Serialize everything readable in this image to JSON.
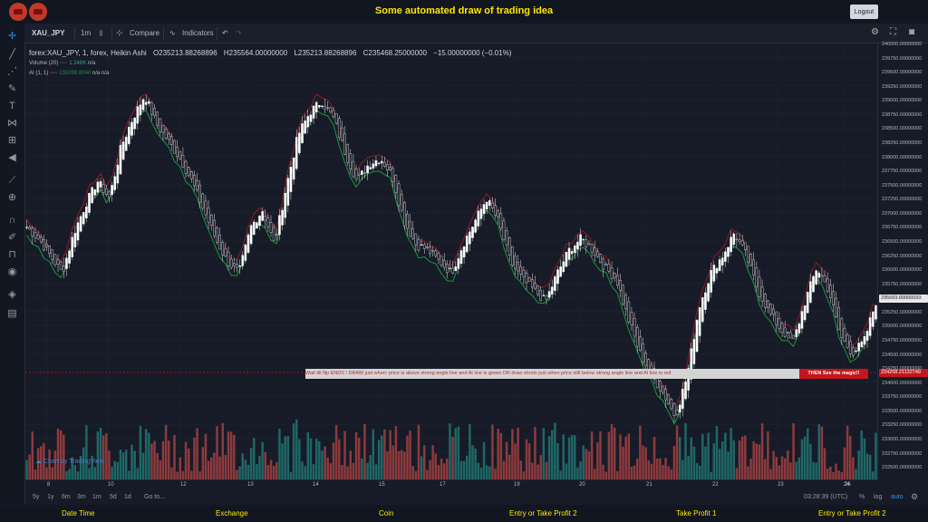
{
  "app": {
    "title": "Some automated draw of trading idea",
    "logout_label": "Logout",
    "logo_color": "#c0392b",
    "title_color": "#ffe600"
  },
  "toolbar": {
    "symbol": "XAU_JPY",
    "interval": "1m",
    "compare_label": "Compare",
    "indicators_label": "Indicators"
  },
  "legend": {
    "symbol_line": "forex:XAU_JPY, 1, forex, Heikin Ashi",
    "open": "O235213.88268896",
    "high": "H235564.00000000",
    "low": "L235213.88268896",
    "close": "C235468.25000000",
    "change": "−15.00000000 (−0.01%)",
    "volume_label": "Volume (20)",
    "volume_value": "1.248K",
    "volume_na": "n/a",
    "ai_label": "AI (1, 1)",
    "ai_value": "235098.8040",
    "ai_na1": "n/a",
    "ai_na2": "n/a"
  },
  "y_axis": {
    "labels": [
      "240000.00000000",
      "239750.00000000",
      "239500.00000000",
      "239250.00000000",
      "239000.00000000",
      "238750.00000000",
      "238500.00000000",
      "238250.00000000",
      "238000.00000000",
      "237750.00000000",
      "237500.00000000",
      "237250.00000000",
      "237000.00000000",
      "236750.00000000",
      "236500.00000000",
      "236250.00000000",
      "236000.00000000",
      "235750.00000000",
      "235500.00000000",
      "235250.00000000",
      "235000.00000000",
      "234750.00000000",
      "234500.00000000",
      "234250.00000000",
      "234000.00000000",
      "233750.00000000",
      "233500.00000000",
      "233250.00000000",
      "233000.00000000",
      "232750.00000000",
      "232500.00000000"
    ],
    "current_price": "235500.00000000",
    "marker_price": "234208.21132749",
    "marker_color": "#c4161c"
  },
  "x_axis": {
    "labels": [
      "8",
      "10",
      "12",
      "13",
      "14",
      "15",
      "17",
      "19",
      "20",
      "21",
      "22",
      "23",
      "24",
      "26"
    ]
  },
  "banner": {
    "text": "Wait till flip ENDS !   DRAW just when:  price is above strong angle line and AI line is green        OR        draw shorts just when price still below strong angle line and AI line is red",
    "end_text": "THEN See the magic!!"
  },
  "watermark": "Chart by TradingView",
  "range_bar": {
    "ranges": [
      "5y",
      "1y",
      "6m",
      "3m",
      "1m",
      "5d",
      "1d"
    ],
    "goto_label": "Go to...",
    "time": "03:28:39 (UTC)",
    "percent_label": "%",
    "log_label": "log",
    "auto_label": "auto"
  },
  "bottom_bar": {
    "items": [
      "Date Time",
      "Exchange",
      "Coin",
      "Entry or Take Profit 2",
      "Take Profit 1",
      "Entry or Take Profit 2"
    ]
  },
  "chart_data": {
    "type": "candlestick",
    "style": "Heikin Ashi",
    "symbol": "forex:XAU_JPY",
    "ylim": [
      232400,
      240000
    ],
    "x_ticks": [
      "8",
      "10",
      "12",
      "13",
      "14",
      "15",
      "17",
      "19",
      "20",
      "21",
      "22",
      "23",
      "24",
      "26"
    ],
    "close_path": [
      236800,
      236600,
      236300,
      236000,
      236700,
      237200,
      237600,
      237300,
      238200,
      238700,
      239100,
      238600,
      238300,
      238000,
      237600,
      237100,
      236600,
      236200,
      236000,
      236800,
      237100,
      236500,
      237500,
      238400,
      238800,
      239000,
      238700,
      238100,
      237600,
      237900,
      238000,
      237700,
      236900,
      236500,
      236400,
      236200,
      236000,
      236500,
      236900,
      237300,
      236900,
      236200,
      235900,
      235700,
      235500,
      236000,
      236400,
      236600,
      236400,
      236100,
      235900,
      235200,
      234600,
      234200,
      233900,
      233500,
      234200,
      235400,
      236000,
      236300,
      236700,
      236300,
      235700,
      235300,
      235000,
      234800,
      235500,
      236100,
      235700,
      234900,
      234600,
      234800,
      235500
    ],
    "ai_color_up": "#1e8c3a",
    "ai_color_down": "#8b1a22",
    "volume_color_up": "#26a69a",
    "volume_color_down": "#ef5350"
  }
}
